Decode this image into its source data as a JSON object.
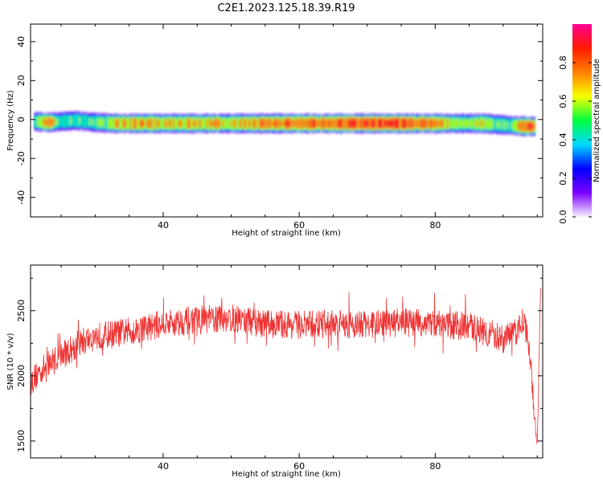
{
  "figure": {
    "title": "C2E1.2023.125.18.39.R19"
  },
  "chart_data": [
    {
      "type": "heatmap",
      "panel": "top",
      "xlabel": "Height of straight line (km)",
      "ylabel": "Frequency (Hz)",
      "xlim": [
        20.5,
        95.8
      ],
      "ylim": [
        -50,
        49
      ],
      "xticks": [
        40,
        60,
        80
      ],
      "yticks": [
        -40,
        -20,
        0,
        20,
        40
      ],
      "colorbar": {
        "label": "Normalized spectral amplitude",
        "ticks": [
          0.0,
          0.2,
          0.4,
          0.6,
          0.8
        ],
        "colormap": "gist_rainbow-like",
        "stops": [
          "#f8f0ff",
          "#7b00ff",
          "#0000ff",
          "#00d9ff",
          "#00ff40",
          "#f8ff00",
          "#ff8000",
          "#ff1a00",
          "#ff0090"
        ]
      },
      "band": {
        "center_freq_hz": -2,
        "half_width_hz": 4,
        "profile": [
          {
            "x": 21,
            "c": -1,
            "amp": 0.55
          },
          {
            "x": 23,
            "c": -1.5,
            "amp": 0.78
          },
          {
            "x": 25,
            "c": -1,
            "amp": 0.5
          },
          {
            "x": 27,
            "c": -0.5,
            "amp": 0.55
          },
          {
            "x": 30,
            "c": -1.5,
            "amp": 0.52
          },
          {
            "x": 33,
            "c": -2,
            "amp": 0.72
          },
          {
            "x": 37,
            "c": -2,
            "amp": 0.8
          },
          {
            "x": 40,
            "c": -2,
            "amp": 0.7
          },
          {
            "x": 45,
            "c": -2,
            "amp": 0.76
          },
          {
            "x": 50,
            "c": -2,
            "amp": 0.72
          },
          {
            "x": 55,
            "c": -2,
            "amp": 0.8
          },
          {
            "x": 60,
            "c": -2,
            "amp": 0.84
          },
          {
            "x": 65,
            "c": -2,
            "amp": 0.86
          },
          {
            "x": 70,
            "c": -2,
            "amp": 0.9
          },
          {
            "x": 75,
            "c": -2,
            "amp": 0.92
          },
          {
            "x": 80,
            "c": -2,
            "amp": 0.82
          },
          {
            "x": 84,
            "c": -2,
            "amp": 0.6
          },
          {
            "x": 87,
            "c": -2,
            "amp": 0.7
          },
          {
            "x": 89,
            "c": -2.5,
            "amp": 0.55
          },
          {
            "x": 91,
            "c": -3,
            "amp": 0.58
          },
          {
            "x": 93,
            "c": -3.5,
            "amp": 0.9
          },
          {
            "x": 94.5,
            "c": -3.5,
            "amp": 0.82
          }
        ]
      }
    },
    {
      "type": "line",
      "panel": "bottom",
      "xlabel": "Height of straight line (km)",
      "ylabel": "SNR (10 * v/v)",
      "xlim": [
        20.5,
        95.8
      ],
      "ylim": [
        1370,
        2850
      ],
      "xticks": [
        40,
        60,
        80
      ],
      "yticks": [
        1500,
        2000,
        2500
      ],
      "series": [
        {
          "color": "#ee3333",
          "trend": [
            {
              "x": 20.5,
              "y": 1950
            },
            {
              "x": 22,
              "y": 2040
            },
            {
              "x": 24,
              "y": 2120
            },
            {
              "x": 26,
              "y": 2190
            },
            {
              "x": 28,
              "y": 2260
            },
            {
              "x": 30,
              "y": 2300
            },
            {
              "x": 35,
              "y": 2340
            },
            {
              "x": 40,
              "y": 2400
            },
            {
              "x": 45,
              "y": 2430
            },
            {
              "x": 50,
              "y": 2440
            },
            {
              "x": 55,
              "y": 2400
            },
            {
              "x": 60,
              "y": 2390
            },
            {
              "x": 65,
              "y": 2400
            },
            {
              "x": 70,
              "y": 2390
            },
            {
              "x": 75,
              "y": 2410
            },
            {
              "x": 80,
              "y": 2400
            },
            {
              "x": 85,
              "y": 2380
            },
            {
              "x": 88,
              "y": 2330
            },
            {
              "x": 90,
              "y": 2280
            },
            {
              "x": 92,
              "y": 2340
            },
            {
              "x": 93,
              "y": 2450
            },
            {
              "x": 94,
              "y": 2150
            },
            {
              "x": 94.6,
              "y": 1650
            },
            {
              "x": 95,
              "y": 1420
            },
            {
              "x": 95.5,
              "y": 2780
            }
          ],
          "noise_amplitude": 110
        }
      ]
    }
  ]
}
